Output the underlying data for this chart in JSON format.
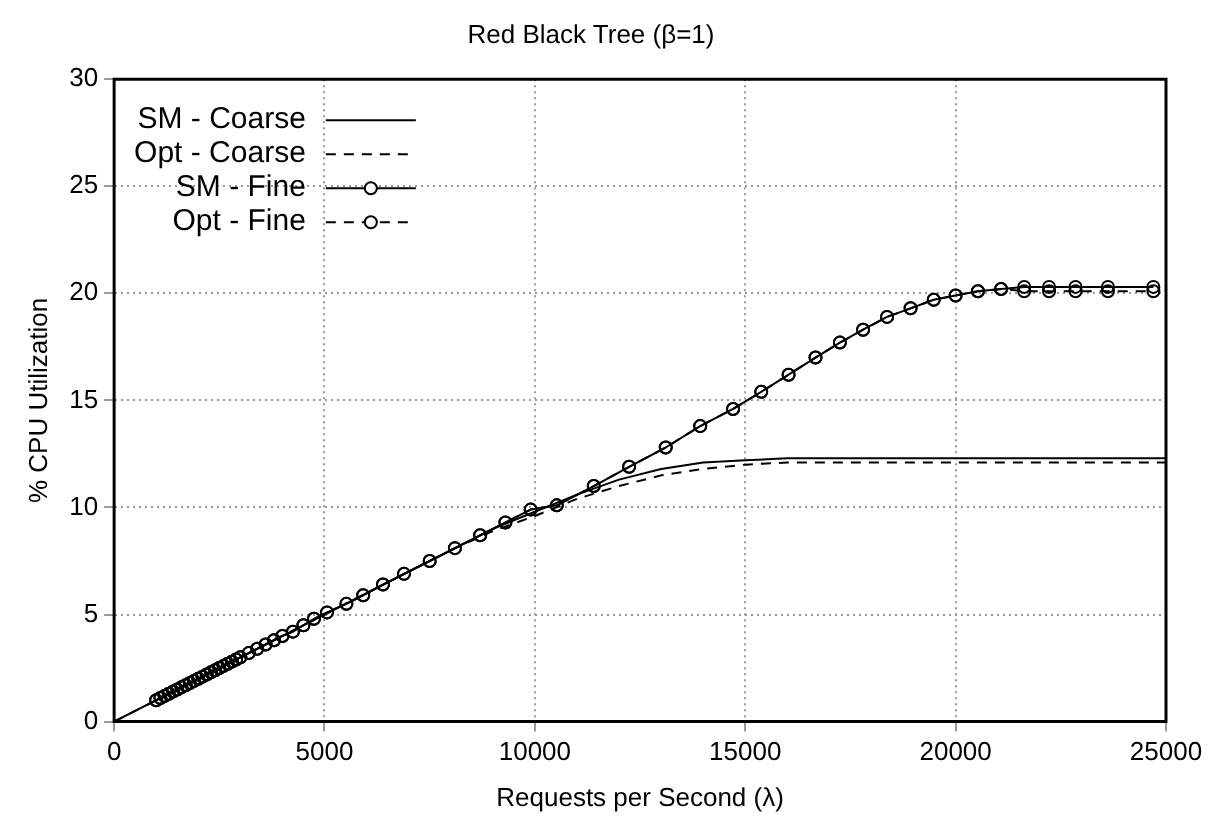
{
  "chart_data": {
    "type": "line",
    "title": "Red Black Tree (β=1)",
    "xlabel": "Requests per Second (λ)",
    "ylabel": "% CPU Utilization",
    "xlim": [
      0,
      25000
    ],
    "xticks": [
      0,
      5000,
      10000,
      15000,
      20000,
      25000
    ],
    "ylim": [
      0,
      30
    ],
    "yticks": [
      0,
      5,
      10,
      15,
      20,
      25,
      30
    ],
    "grid": true,
    "legend": "top left",
    "series": [
      {
        "name": "SM - Coarse",
        "color": "#000000",
        "marker": "none",
        "line_style": "solid",
        "x": [
          0,
          5000,
          8000,
          9000,
          10000,
          11000,
          12000,
          13000,
          14000,
          15000,
          16000,
          17000,
          25000
        ],
        "values": [
          0,
          5,
          8,
          9,
          9.8,
          10.6,
          11.3,
          11.8,
          12.1,
          12.2,
          12.3,
          12.3,
          12.3
        ]
      },
      {
        "name": "Opt - Coarse",
        "color": "#000000",
        "marker": "none",
        "line_style": "dashed",
        "x": [
          0,
          5000,
          8000,
          9000,
          10000,
          11000,
          12000,
          13000,
          14000,
          15000,
          16000,
          17000,
          25000
        ],
        "values": [
          0,
          5,
          8,
          8.9,
          9.6,
          10.4,
          11.0,
          11.5,
          11.8,
          12.0,
          12.1,
          12.1,
          12.1
        ]
      },
      {
        "name": "SM - Fine",
        "color": "#000000",
        "marker": "circle",
        "line_style": "solid",
        "x": [
          1000,
          1100,
          1200,
          1300,
          1400,
          1500,
          1600,
          1700,
          1800,
          1900,
          2000,
          2100,
          2200,
          2300,
          2400,
          2500,
          2600,
          2700,
          2800,
          2900,
          3000,
          3200,
          3400,
          3600,
          3800,
          4000,
          4250,
          4500,
          4750,
          5060,
          5520,
          5920,
          6390,
          6890,
          7500,
          8100,
          8700,
          9300,
          9900,
          10520,
          11400,
          12240,
          13110,
          13930,
          14710,
          15380,
          16030,
          16670,
          17250,
          17800,
          18370,
          18930,
          19480,
          20000,
          20530,
          21080,
          21630,
          22220,
          22850,
          23620,
          24700
        ],
        "values": [
          1.0,
          1.1,
          1.2,
          1.3,
          1.4,
          1.5,
          1.6,
          1.7,
          1.8,
          1.9,
          2.0,
          2.1,
          2.2,
          2.3,
          2.4,
          2.5,
          2.6,
          2.7,
          2.8,
          2.9,
          3.0,
          3.2,
          3.4,
          3.6,
          3.8,
          4.0,
          4.2,
          4.5,
          4.8,
          5.1,
          5.5,
          5.9,
          6.4,
          6.9,
          7.5,
          8.1,
          8.7,
          9.3,
          9.9,
          10.1,
          11.0,
          11.9,
          12.8,
          13.8,
          14.6,
          15.4,
          16.2,
          17.0,
          17.7,
          18.3,
          18.9,
          19.3,
          19.7,
          19.9,
          20.1,
          20.2,
          20.3,
          20.3,
          20.3,
          20.3,
          20.3
        ]
      },
      {
        "name": "Opt - Fine",
        "color": "#000000",
        "marker": "circle",
        "line_style": "dashed",
        "x": [
          1000,
          1100,
          1200,
          1300,
          1400,
          1500,
          1600,
          1700,
          1800,
          1900,
          2000,
          2100,
          2200,
          2300,
          2400,
          2500,
          2600,
          2700,
          2800,
          2900,
          3000,
          3200,
          3400,
          3600,
          3800,
          4000,
          4250,
          4500,
          4750,
          5060,
          5520,
          5920,
          6390,
          6890,
          7500,
          8100,
          8700,
          9300,
          9900,
          10520,
          11400,
          12240,
          13110,
          13930,
          14710,
          15380,
          16030,
          16670,
          17250,
          17800,
          18370,
          18930,
          19480,
          20000,
          20530,
          21080,
          21630,
          22220,
          22850,
          23620,
          24700
        ],
        "values": [
          1.0,
          1.1,
          1.2,
          1.3,
          1.4,
          1.5,
          1.6,
          1.7,
          1.8,
          1.9,
          2.0,
          2.1,
          2.2,
          2.3,
          2.4,
          2.5,
          2.6,
          2.7,
          2.8,
          2.9,
          3.0,
          3.2,
          3.4,
          3.6,
          3.8,
          4.0,
          4.2,
          4.5,
          4.8,
          5.1,
          5.5,
          5.9,
          6.4,
          6.9,
          7.5,
          8.1,
          8.7,
          9.3,
          9.9,
          10.1,
          11.0,
          11.9,
          12.8,
          13.8,
          14.6,
          15.4,
          16.2,
          17.0,
          17.7,
          18.3,
          18.9,
          19.3,
          19.7,
          19.9,
          20.1,
          20.2,
          20.1,
          20.1,
          20.1,
          20.1,
          20.1
        ]
      }
    ]
  }
}
